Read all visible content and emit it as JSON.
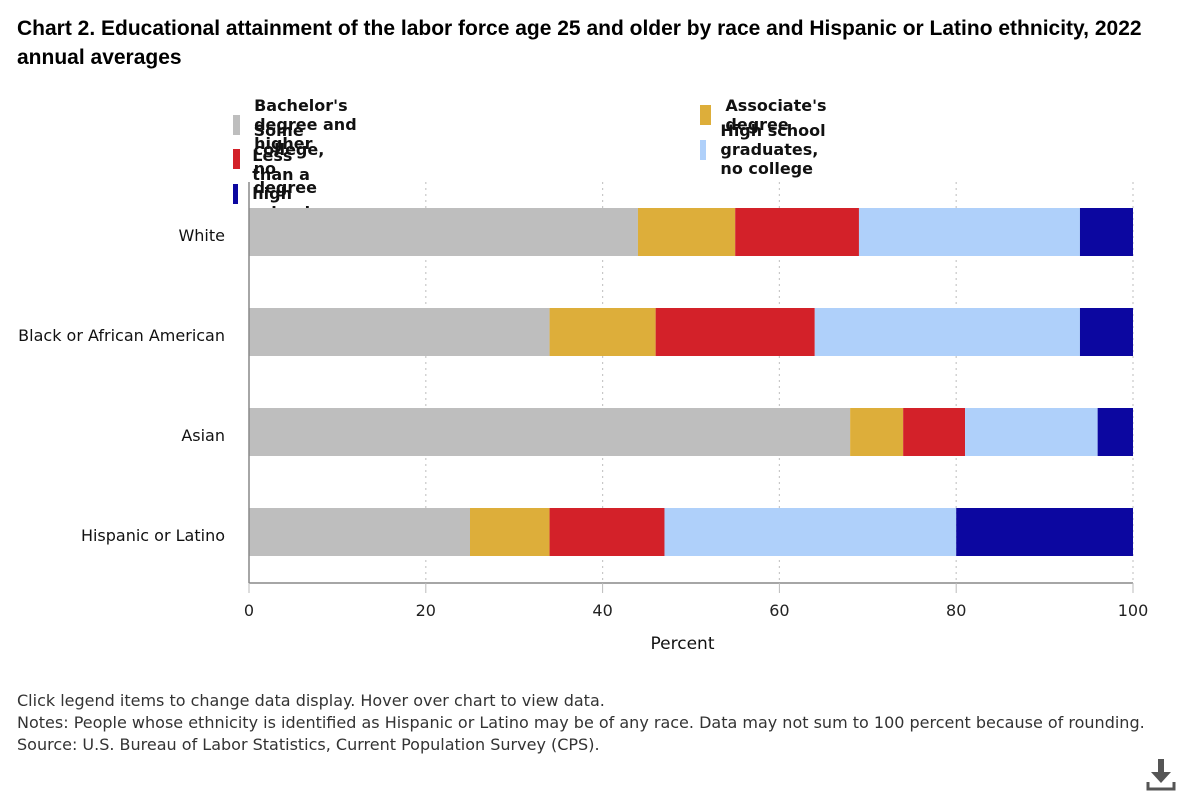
{
  "chart_data": {
    "type": "bar",
    "orientation": "horizontal",
    "stacked": true,
    "title": "Chart 2. Educational attainment of the labor force age 25 and older by race and Hispanic or Latino ethnicity, 2022 annual averages",
    "xlabel": "Percent",
    "ylabel": "",
    "xlim": [
      0,
      100
    ],
    "xticks": [
      0,
      20,
      40,
      60,
      80,
      100
    ],
    "grid": "vertical-dotted",
    "legend_position": "top",
    "categories": [
      "White",
      "Black or African American",
      "Asian",
      "Hispanic or Latino"
    ],
    "series": [
      {
        "name": "Bachelor's degree and higher",
        "color": "#bebebe",
        "values": [
          44,
          34,
          68,
          25
        ]
      },
      {
        "name": "Associate's degree",
        "color": "#ddae3a",
        "values": [
          11,
          12,
          6,
          9
        ]
      },
      {
        "name": "Some college, no degree",
        "color": "#d32129",
        "values": [
          14,
          18,
          7,
          13
        ]
      },
      {
        "name": "High school graduates, no college",
        "color": "#afd0fa",
        "values": [
          25,
          30,
          15,
          33
        ]
      },
      {
        "name": "Less than a high school diploma",
        "color": "#0c07a0",
        "values": [
          6,
          6,
          4,
          20
        ]
      }
    ]
  },
  "legend": {
    "order": [
      0,
      1,
      2,
      3,
      4
    ]
  },
  "notes": {
    "instruction": "Click legend items to change data display. Hover over chart to view data.",
    "notes": "Notes: People whose ethnicity is identified as Hispanic or Latino may be of any race. Data may not sum to 100 percent because of rounding.",
    "source": "Source: U.S. Bureau of Labor Statistics, Current Population Survey (CPS)."
  },
  "icons": {
    "download": "download-icon"
  }
}
